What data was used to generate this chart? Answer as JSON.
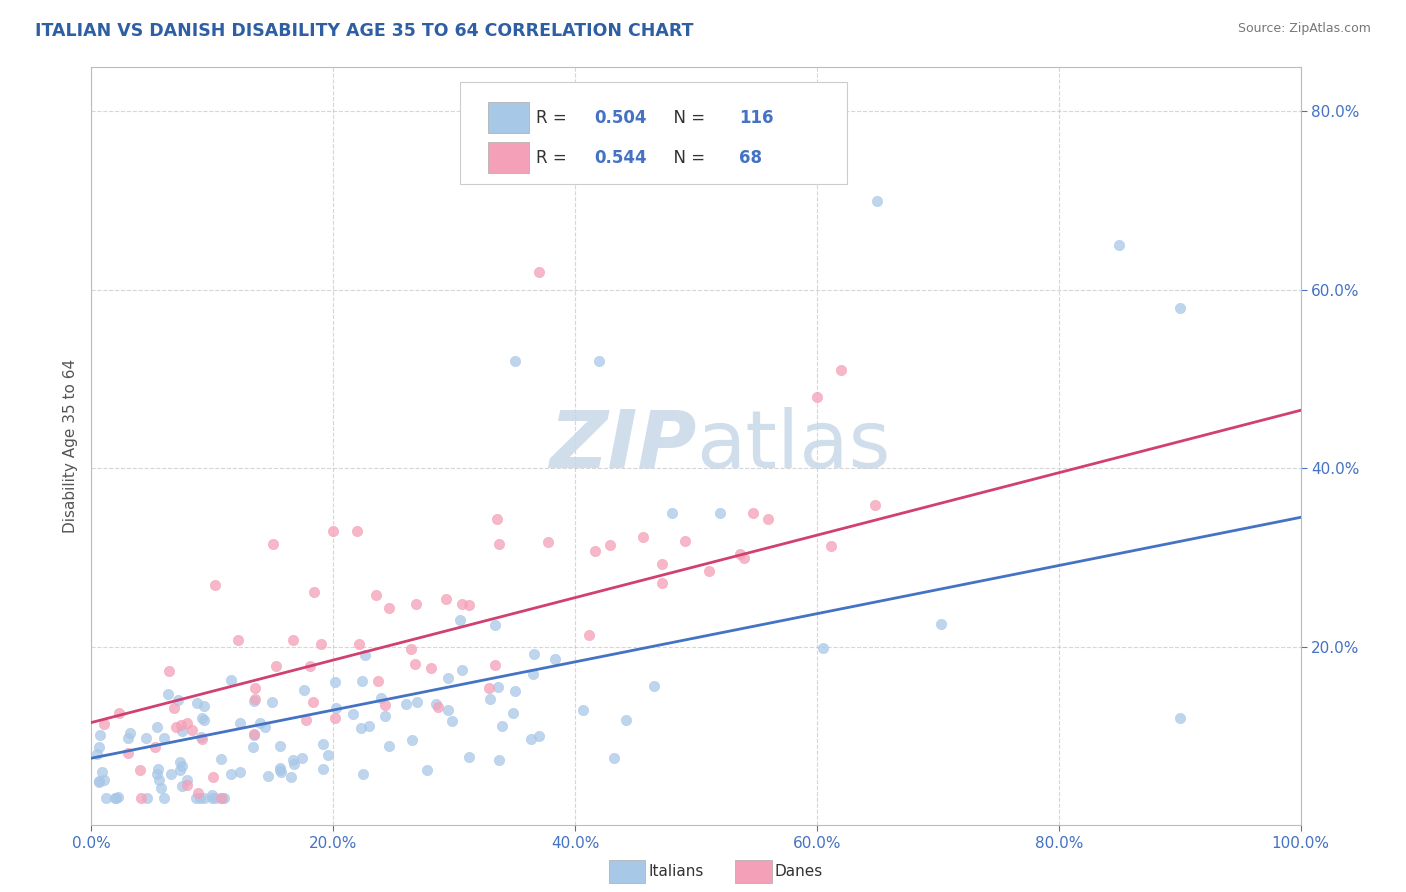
{
  "title": "ITALIAN VS DANISH DISABILITY AGE 35 TO 64 CORRELATION CHART",
  "source": "Source: ZipAtlas.com",
  "ylabel": "Disability Age 35 to 64",
  "italian_color": "#a8c8e8",
  "danish_color": "#f4a0b8",
  "italian_line_color": "#4472c4",
  "danish_line_color": "#d04070",
  "title_color": "#2e5fa3",
  "watermark_color": "#c8d8e8",
  "background_color": "#ffffff",
  "grid_color": "#bbbbbb",
  "tick_color": "#4472c4",
  "ylabel_color": "#555555",
  "source_color": "#777777",
  "legend_text_color": "#333333",
  "legend_value_color": "#4472c4",
  "italian_r": "0.504",
  "italian_n": "116",
  "danish_r": "0.544",
  "danish_n": "68"
}
